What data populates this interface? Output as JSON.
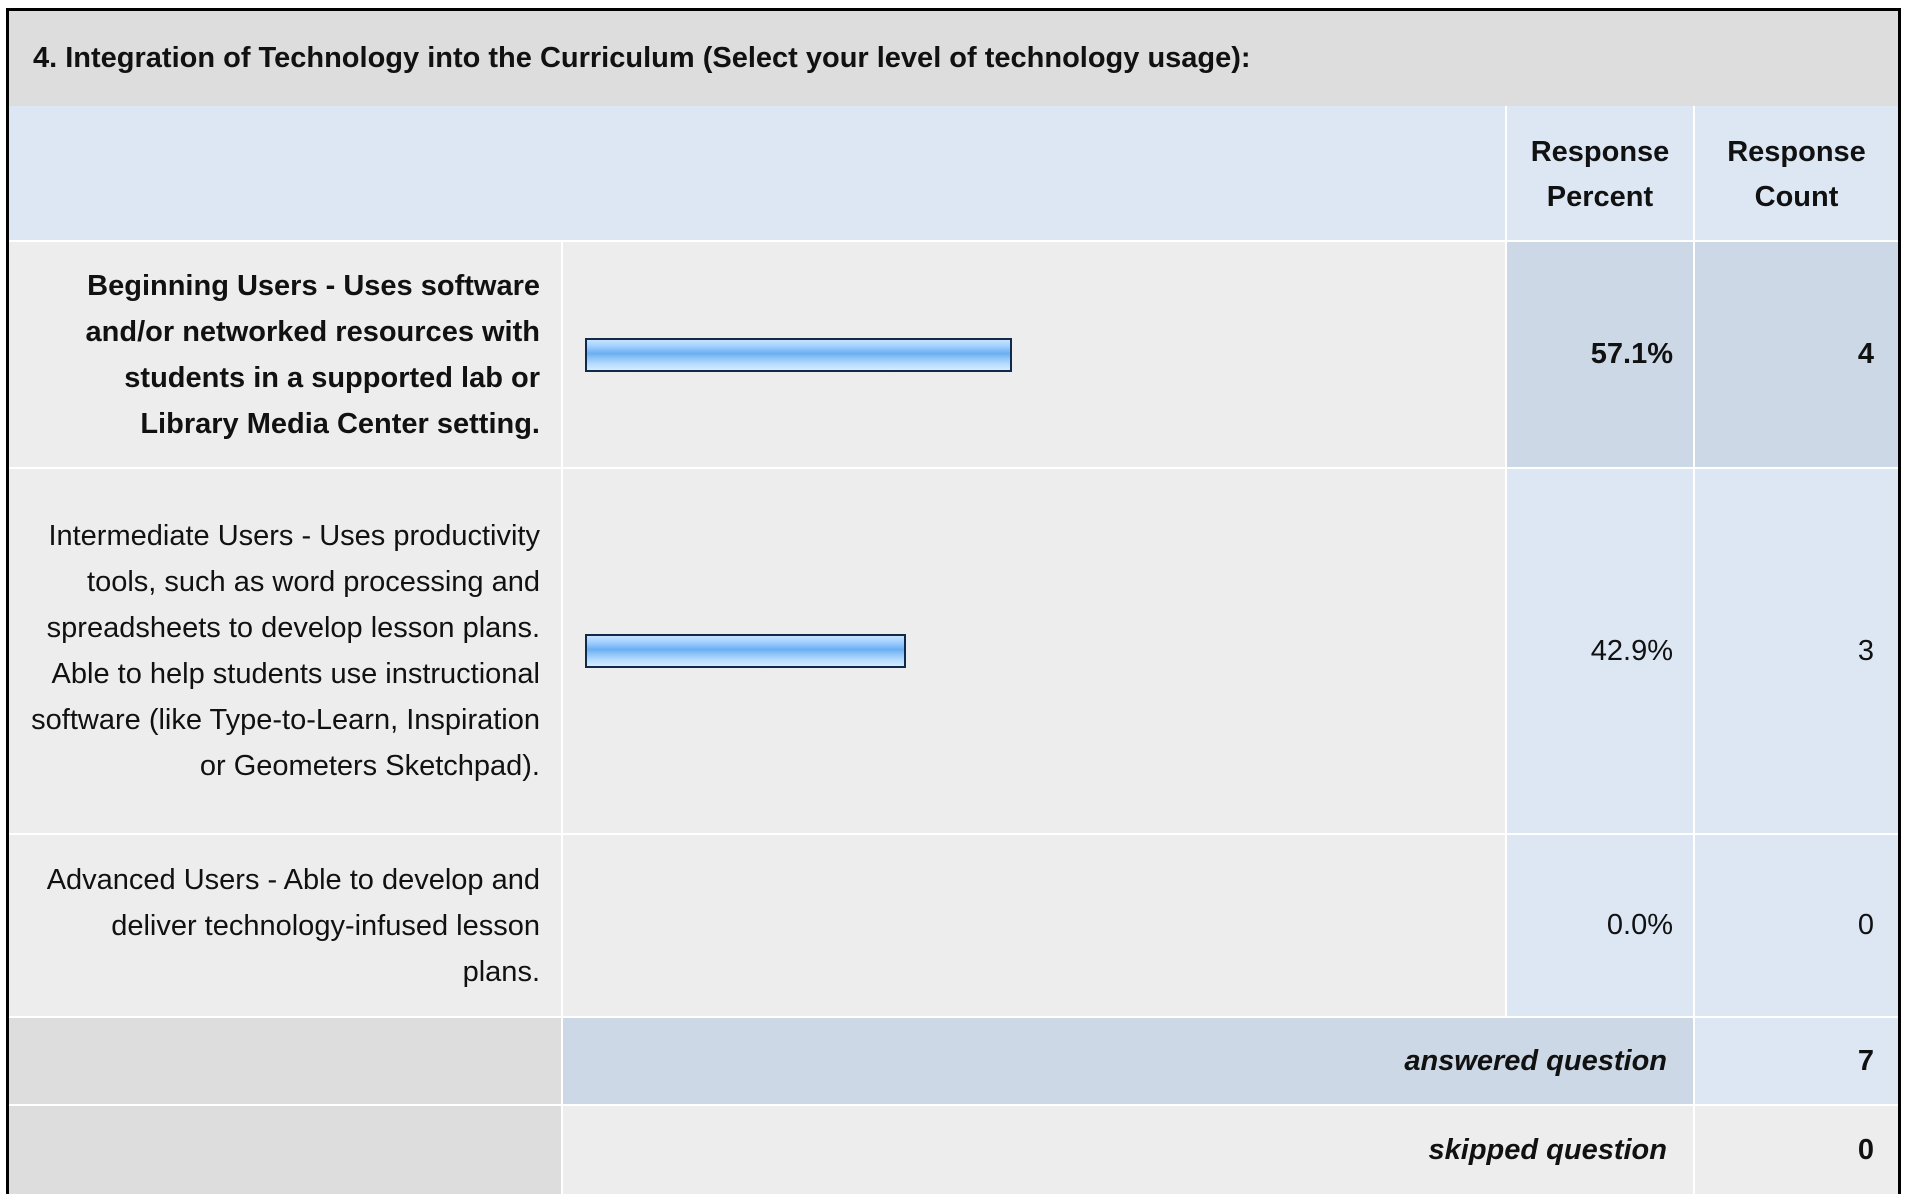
{
  "question": {
    "title": "4. Integration of Technology into the Curriculum (Select your level of technology usage):"
  },
  "headers": {
    "percent": "Response Percent",
    "count": "Response Count"
  },
  "rows": [
    {
      "label": "Beginning Users - Uses software and/or networked resources with students in a supported lab or Library Media Center setting.",
      "percent_text": "57.1%",
      "count_text": "4"
    },
    {
      "label": "Intermediate Users - Uses productivity tools, such as word processing and spreadsheets to develop lesson plans. Able to help students use instructional software (like Type-to-Learn, Inspiration or Geometers Sketchpad).",
      "percent_text": "42.9%",
      "count_text": "3"
    },
    {
      "label": "Advanced Users - Able to develop and deliver technology-infused lesson plans.",
      "percent_text": "0.0%",
      "count_text": "0"
    }
  ],
  "summary": {
    "answered_label": "answered question",
    "answered_value": "7",
    "skipped_label": "skipped question",
    "skipped_value": "0"
  },
  "chart_data": {
    "type": "bar",
    "categories": [
      "Beginning Users - Uses software and/or networked resources with students in a supported lab or Library Media Center setting.",
      "Intermediate Users - Uses productivity tools, such as word processing and spreadsheets to develop lesson plans. Able to help students use instructional software (like Type-to-Learn, Inspiration or Geometers Sketchpad).",
      "Advanced Users - Able to develop and deliver technology-infused lesson plans."
    ],
    "values": [
      57.1,
      42.9,
      0.0
    ],
    "counts": [
      4,
      3,
      0
    ],
    "ylim": [
      0,
      100
    ],
    "orientation": "horizontal",
    "bar_color": "#6aaef2"
  },
  "colors": {
    "header_bg": "#dde7f4",
    "title_bg": "#dddddd",
    "row_bg": "#ededed",
    "highlight_bg": "#ccd8e6",
    "bar_fill": "#6aaef2",
    "bar_border": "#0f2a4a"
  }
}
